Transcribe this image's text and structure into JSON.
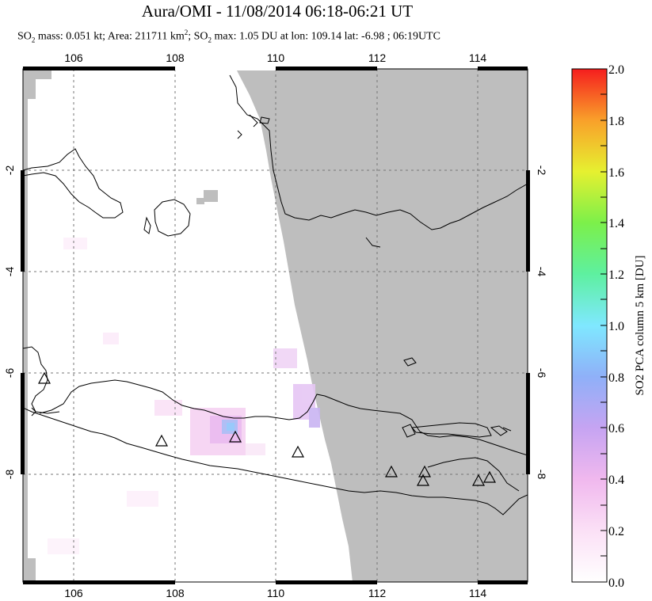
{
  "title": "Aura/OMI - 11/08/2014 06:18-06:21 UT",
  "subtitle": {
    "so2_mass_label": "SO",
    "so2_mass_text": " mass: 0.051 kt; Area: 211711 km",
    "area_sup": "2",
    "so2_max_label": "; SO",
    "so2_max_text": " max: 1.05 DU at lon: 109.14 lat: -6.98 ; 06:19UTC",
    "sub2": "2"
  },
  "map": {
    "lon_ticks": [
      "106",
      "108",
      "110",
      "112",
      "114"
    ],
    "lat_ticks": [
      "-2",
      "-4",
      "-6",
      "-8"
    ],
    "lat_ticks_right": [
      "-2",
      "-4",
      "-6",
      "-8"
    ],
    "no_data_color": "#bebebe",
    "volcano_count": 9
  },
  "colorbar": {
    "ticks": [
      "2.0",
      "1.8",
      "1.6",
      "1.4",
      "1.2",
      "1.0",
      "0.8",
      "0.6",
      "0.4",
      "0.2",
      "0.0"
    ],
    "label": "SO2 PCA column 5 km [DU]",
    "min": 0.0,
    "max": 2.0,
    "colors": [
      "#ffffff",
      "#f7c6f2",
      "#c9a0f0",
      "#8fa8f5",
      "#7ff0ff",
      "#52f08c",
      "#a8f040",
      "#f5f02e",
      "#f9a82a",
      "#f55a1e",
      "#f51e1e"
    ]
  }
}
